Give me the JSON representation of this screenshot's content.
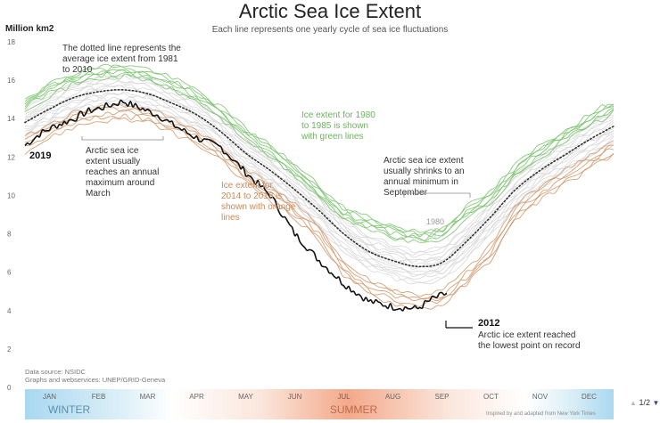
{
  "chart_data": {
    "type": "line",
    "title": "Arctic Sea Ice Extent",
    "subtitle": "Each line represents one yearly cycle of sea ice fluctuations",
    "ylabel": "Million km2",
    "ylim": [
      0,
      18
    ],
    "yticks": [
      0,
      2,
      4,
      6,
      8,
      10,
      12,
      14,
      16,
      18
    ],
    "months": [
      "JAN",
      "FEB",
      "MAR",
      "APR",
      "MAY",
      "JUN",
      "JUL",
      "AUG",
      "SEP",
      "OCT",
      "NOV",
      "DEC"
    ],
    "seasons": {
      "winter": "WINTER",
      "summer": "SUMMER"
    },
    "grid": false,
    "series": [
      {
        "name": "1981 to 2010 average",
        "style": "dotted",
        "x": [
          0,
          0.5,
          1,
          1.5,
          2,
          2.5,
          3,
          3.5,
          4,
          4.5,
          5,
          5.5,
          6,
          6.5,
          7,
          7.5,
          8,
          8.5,
          9,
          9.5,
          10,
          10.5,
          11,
          11.5,
          12
        ],
        "y": [
          13.8,
          14.5,
          15.1,
          15.4,
          15.5,
          15.3,
          14.8,
          14.2,
          13.3,
          12.2,
          11.3,
          10.3,
          9.2,
          8.0,
          7.1,
          6.6,
          6.3,
          6.5,
          7.6,
          8.9,
          10.3,
          11.3,
          12.1,
          12.9,
          13.6
        ]
      },
      {
        "name": "2019",
        "style": "solid",
        "x": [
          0,
          0.3,
          0.6,
          1,
          1.3,
          1.6,
          2,
          2.4,
          2.7,
          3,
          3.5,
          4,
          4.5,
          5,
          5.5,
          6,
          6.5,
          7,
          7.5,
          8,
          8.3,
          8.6
        ],
        "y": [
          12.6,
          13.2,
          13.6,
          14.0,
          14.4,
          14.6,
          14.9,
          14.5,
          14.2,
          13.7,
          13.0,
          12.5,
          11.2,
          10.0,
          8.0,
          6.6,
          5.4,
          4.5,
          4.2,
          4.1,
          4.6,
          4.9
        ]
      }
    ],
    "background_bands": [
      {
        "name": "1980 to 1985",
        "color": "#7cc46f"
      },
      {
        "name": "2014 to 2018",
        "color": "#d09060"
      },
      {
        "name": "other years",
        "color": "#d8d8d8"
      }
    ],
    "annotations": {
      "dotted": "The dotted line represents the average ice extent from 1981 to 2010",
      "max": "Arctic sea ice extent usually reaches an annual maximum around March",
      "green": "Ice extent for 1980 to 1985 is shown with green lines",
      "orange": "Ice extent for 2014 to 2018 is shown with orange lines",
      "min": "Arctic sea ice extent usually shrinks to an annual minimum in September",
      "label_1980": "1980",
      "label_2019": "2019",
      "label_2012": "2012",
      "note_2012": "Arctic ice extent reached the lowest point on record"
    }
  },
  "footer": {
    "source": "Data source: NSIDC",
    "graphics": "Graphs and webservices: UNEP/GRID-Geneva",
    "credit": "Inspired by and adapted from New York Times",
    "pager": "1/2"
  },
  "colors": {
    "green": "#7cc46f",
    "orange": "#d09060",
    "gray": "#d8d8d8",
    "black": "#111111",
    "winter": "#a8d8f0",
    "summer": "#f3a98a",
    "annotation_green": "#6ab35c",
    "annotation_orange": "#c98a5a"
  }
}
